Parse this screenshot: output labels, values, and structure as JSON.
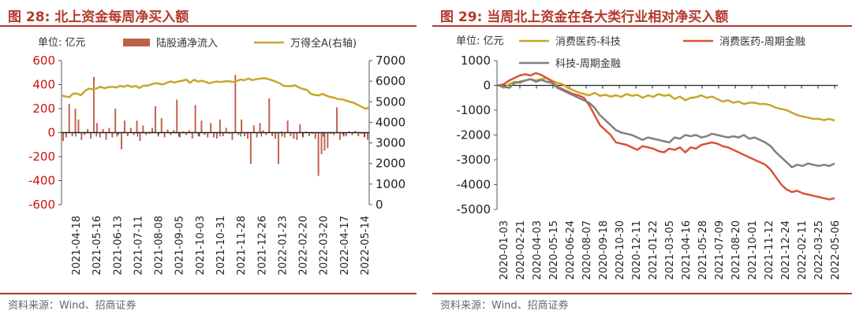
{
  "colors": {
    "accent": "#b23a2c",
    "bar": "#c0604a",
    "gold": "#c8a62a",
    "salmon": "#d9533a",
    "gray": "#808080"
  },
  "left_panel": {
    "title": "图 28:  北上资金每周净买入额",
    "source": "资料来源：Wind、招商证券"
  },
  "right_panel": {
    "title": "图 29:  当周北上资金在各大类行业相对净买入额",
    "source": "资料来源：Wind、招商证券"
  },
  "chart_data": [
    {
      "type": "bar+line",
      "unit_label": "单位:  亿元",
      "xlabels": [
        "2021-04-18",
        "2021-05-16",
        "2021-06-13",
        "2021-07-11",
        "2021-08-08",
        "2021-09-05",
        "2021-10-03",
        "2021-10-31",
        "2021-11-28",
        "2021-12-26",
        "2022-01-23",
        "2022-02-20",
        "2022-03-20",
        "2022-04-17",
        "2022-05-14"
      ],
      "y_left": {
        "min": -600,
        "max": 600,
        "step": 200,
        "ticks": [
          "600",
          "400",
          "200",
          "0",
          "-200",
          "-400",
          "-600"
        ]
      },
      "y_right": {
        "min": 0,
        "max": 7000,
        "step": 1000,
        "ticks": [
          "7000",
          "6000",
          "5000",
          "4000",
          "3000",
          "2000",
          "1000",
          "0"
        ]
      },
      "series": [
        {
          "name": "陆股通净流入",
          "type": "bar",
          "axis": "left",
          "values": [
            -70,
            -40,
            240,
            -30,
            200,
            110,
            -60,
            -20,
            30,
            -50,
            465,
            80,
            -40,
            30,
            -60,
            40,
            -40,
            200,
            -20,
            -140,
            100,
            -30,
            40,
            -20,
            100,
            -70,
            60,
            -20,
            -10,
            40,
            220,
            -20,
            120,
            -40,
            25,
            -20,
            20,
            275,
            -40,
            10,
            -20,
            20,
            -50,
            230,
            -30,
            100,
            -20,
            -40,
            80,
            -40,
            -50,
            110,
            -30,
            40,
            -10,
            -60,
            480,
            -20,
            110,
            -30,
            -50,
            -260,
            60,
            -40,
            80,
            20,
            -20,
            285,
            -30,
            -50,
            -260,
            10,
            -40,
            100,
            -30,
            -50,
            -60,
            70,
            -40,
            10,
            -30,
            -10,
            -50,
            -360,
            -180,
            -150,
            -130,
            -10,
            -20,
            210,
            -60,
            -20,
            -30,
            10,
            -20,
            15,
            -30,
            -10,
            -40,
            -60
          ],
          "color": "#c0604a"
        },
        {
          "name": "万得全A(右轴)",
          "type": "line",
          "axis": "right",
          "values": [
            5300,
            5260,
            5220,
            5400,
            5400,
            5320,
            5520,
            5640,
            5610,
            5650,
            5730,
            5660,
            5710,
            5730,
            5690,
            5770,
            5730,
            5800,
            5720,
            5770,
            5670,
            5780,
            5780,
            5840,
            5900,
            5880,
            5840,
            5920,
            5990,
            5930,
            5990,
            6020,
            6080,
            5920,
            6070,
            5980,
            6020,
            5960,
            5900,
            5960,
            5980,
            5960,
            5990,
            6000,
            5960,
            6010,
            6080,
            6050,
            6130,
            6050,
            6100,
            6120,
            6150,
            6110,
            6050,
            5980,
            5900,
            5770,
            5760,
            5760,
            5800,
            5690,
            5620,
            5580,
            5390,
            5330,
            5310,
            5380,
            5300,
            5230,
            5200,
            5130,
            5120,
            5060,
            5000,
            4950,
            4860,
            4760,
            4660,
            4720
          ],
          "color": "#c8a62a"
        }
      ]
    },
    {
      "type": "line",
      "unit_label": "单位:  亿元",
      "xlabels": [
        "2020-01-03",
        "2020-02-21",
        "2020-04-03",
        "2020-05-15",
        "2020-06-24",
        "2020-08-07",
        "2020-09-18",
        "2020-10-30",
        "2020-12-11",
        "2021-01-22",
        "2021-03-05",
        "2021-04-16",
        "2021-05-28",
        "2021-07-09",
        "2021-08-20",
        "2021-10-01",
        "2021-11-12",
        "2021-12-24",
        "2022-02-11",
        "2022-03-25",
        "2022-05-06"
      ],
      "y": {
        "min": -5000,
        "max": 1000,
        "step": 1000,
        "ticks": [
          "1000",
          "0",
          "-1000",
          "-2000",
          "-3000",
          "-4000",
          "-5000"
        ]
      },
      "series": [
        {
          "name": "消费医药-科技",
          "color": "#c8a62a",
          "values": [
            0,
            -100,
            50,
            150,
            100,
            200,
            250,
            200,
            250,
            300,
            200,
            100,
            50,
            -100,
            -200,
            -280,
            -350,
            -400,
            -300,
            -420,
            -380,
            -450,
            -400,
            -460,
            -350,
            -420,
            -380,
            -500,
            -400,
            -460,
            -350,
            -420,
            -380,
            -550,
            -450,
            -600,
            -500,
            -480,
            -400,
            -500,
            -450,
            -550,
            -650,
            -600,
            -700,
            -650,
            -750,
            -700,
            -700,
            -750,
            -750,
            -800,
            -900,
            -950,
            -1000,
            -1100,
            -1200,
            -1250,
            -1300,
            -1350,
            -1350,
            -1400,
            -1350,
            -1420
          ]
        },
        {
          "name": "消费医药-周期金融",
          "color": "#d9533a",
          "values": [
            0,
            50,
            200,
            300,
            400,
            450,
            400,
            500,
            420,
            300,
            150,
            -50,
            -150,
            -250,
            -350,
            -400,
            -500,
            -800,
            -1200,
            -1600,
            -1800,
            -2000,
            -2300,
            -2350,
            -2400,
            -2500,
            -2600,
            -2450,
            -2500,
            -2550,
            -2650,
            -2700,
            -2550,
            -2600,
            -2500,
            -2700,
            -2500,
            -2550,
            -2400,
            -2350,
            -2300,
            -2350,
            -2450,
            -2500,
            -2600,
            -2700,
            -2800,
            -2900,
            -3000,
            -3100,
            -3200,
            -3400,
            -3700,
            -4000,
            -4200,
            -4300,
            -4250,
            -4350,
            -4400,
            -4450,
            -4500,
            -4550,
            -4600,
            -4550
          ]
        },
        {
          "name": "科技-周期金融",
          "color": "#808080",
          "values": [
            0,
            -50,
            -100,
            100,
            150,
            200,
            250,
            150,
            220,
            150,
            100,
            -100,
            -200,
            -300,
            -400,
            -500,
            -600,
            -700,
            -900,
            -1200,
            -1400,
            -1600,
            -1800,
            -1900,
            -1950,
            -2000,
            -2100,
            -2200,
            -2100,
            -2150,
            -2200,
            -2250,
            -2300,
            -2100,
            -2150,
            -2000,
            -2050,
            -2000,
            -2100,
            -2050,
            -1950,
            -2000,
            -2050,
            -2100,
            -2050,
            -2100,
            -2000,
            -2150,
            -2100,
            -2200,
            -2300,
            -2450,
            -2700,
            -2900,
            -3100,
            -3300,
            -3200,
            -3250,
            -3150,
            -3200,
            -3250,
            -3200,
            -3250,
            -3150
          ]
        }
      ]
    }
  ]
}
